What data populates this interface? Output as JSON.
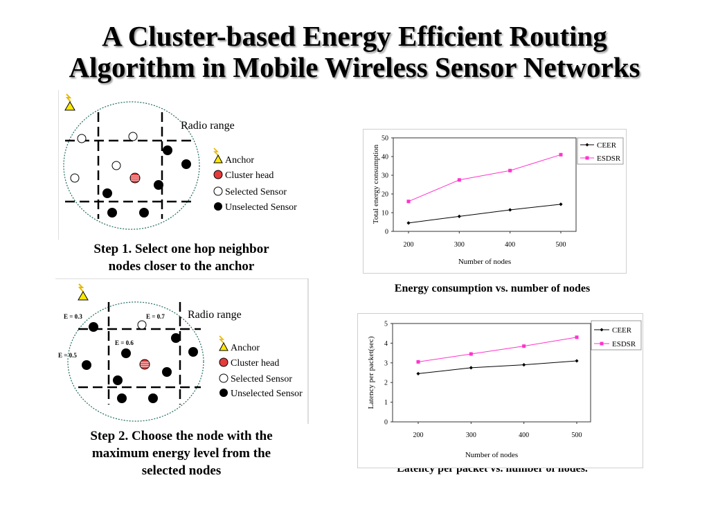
{
  "title_line1": "A Cluster-based Energy Efficient Routing",
  "title_line2": "Algorithm in Mobile Wireless Sensor Networks",
  "step1": {
    "caption_line1": "Step 1. Select one hop neighbor",
    "caption_line2": "nodes closer to the anchor",
    "radio_range": "Radio range",
    "legend": [
      "Anchor",
      "Cluster head",
      "Selected Sensor",
      "Unselected Sensor"
    ]
  },
  "step2": {
    "caption_line1": "Step 2. Choose the node with the",
    "caption_line2": "maximum energy level from the",
    "caption_line3": "selected nodes",
    "radio_range": "Radio range",
    "legend": [
      "Anchor",
      "Cluster head",
      "Selected Sensor",
      "Unselected Sensor"
    ],
    "energy_labels": [
      "E = 0.3",
      "E = 0.7",
      "E = 0.6",
      "E = 0.5"
    ]
  },
  "colors": {
    "anchor": "#ffe800",
    "cluster_head": "#e53b3b",
    "ceer": "#000000",
    "esdsr": "#ff33cc"
  },
  "chart_data": [
    {
      "type": "line",
      "title": "Energy consumption vs. number of nodes",
      "xlabel": "Number of nodes",
      "ylabel": "Total energy consumption",
      "categories": [
        "200",
        "300",
        "400",
        "500"
      ],
      "ylim": [
        0,
        50
      ],
      "yticks": [
        "0",
        "10",
        "20",
        "30",
        "40",
        "50"
      ],
      "legend_position": "top-right",
      "series": [
        {
          "name": "CEER",
          "values": [
            4.5,
            8,
            11.5,
            14.5
          ]
        },
        {
          "name": "ESDSR",
          "values": [
            16,
            27.5,
            32.5,
            41
          ]
        }
      ]
    },
    {
      "type": "line",
      "title": "Latency per packet vs. number of nodes.",
      "xlabel": "Number of nodes",
      "ylabel": "Latency per packet(sec)",
      "categories": [
        "200",
        "300",
        "400",
        "500"
      ],
      "ylim": [
        0,
        5
      ],
      "yticks": [
        "0",
        "1",
        "2",
        "3",
        "4",
        "5"
      ],
      "legend_position": "top-right",
      "series": [
        {
          "name": "CEER",
          "values": [
            2.45,
            2.75,
            2.9,
            3.1
          ]
        },
        {
          "name": "ESDSR",
          "values": [
            3.05,
            3.45,
            3.85,
            4.3
          ]
        }
      ]
    }
  ]
}
